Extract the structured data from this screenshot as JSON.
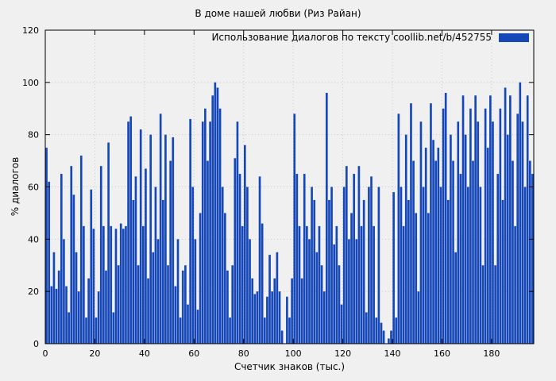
{
  "page": {
    "background": "#f0f0f0"
  },
  "chart_data": {
    "type": "bar",
    "title": "В доме нашей любви (Риз Райан)",
    "xlabel": "Счетчик знаков (тыс.)",
    "ylabel": "% диалогов",
    "legend": "Использование диалогов по тексту  coollib.net/b/452755",
    "bar_color": "#1547b8",
    "axis_color": "#000000",
    "grid_color": "#c9c9c9",
    "xlim": [
      0,
      197
    ],
    "ylim": [
      0,
      120
    ],
    "x_ticks": [
      0,
      20,
      40,
      60,
      80,
      100,
      120,
      140,
      160,
      180
    ],
    "y_ticks": [
      0,
      20,
      40,
      60,
      80,
      100,
      120
    ],
    "grid": true,
    "x_step": 1,
    "values": [
      75,
      62,
      22,
      35,
      21,
      28,
      65,
      40,
      22,
      12,
      68,
      57,
      35,
      20,
      72,
      45,
      10,
      25,
      59,
      44,
      10,
      20,
      68,
      45,
      28,
      77,
      45,
      12,
      44,
      30,
      46,
      44,
      45,
      85,
      87,
      55,
      64,
      30,
      82,
      45,
      67,
      25,
      80,
      35,
      60,
      40,
      88,
      55,
      80,
      30,
      70,
      79,
      22,
      40,
      10,
      28,
      30,
      15,
      86,
      60,
      40,
      13,
      50,
      85,
      90,
      70,
      85,
      95,
      100,
      98,
      90,
      60,
      50,
      28,
      10,
      30,
      71,
      85,
      65,
      45,
      76,
      60,
      40,
      25,
      19,
      20,
      64,
      46,
      10,
      18,
      34,
      20,
      25,
      35,
      20,
      5,
      0,
      18,
      10,
      25,
      88,
      65,
      45,
      25,
      65,
      45,
      40,
      60,
      55,
      35,
      45,
      30,
      20,
      96,
      55,
      60,
      38,
      45,
      30,
      15,
      60,
      68,
      40,
      50,
      65,
      40,
      68,
      45,
      55,
      12,
      60,
      64,
      45,
      10,
      60,
      8,
      5,
      0,
      2,
      5,
      58,
      10,
      88,
      60,
      45,
      80,
      55,
      92,
      70,
      50,
      20,
      85,
      60,
      75,
      50,
      92,
      78,
      70,
      75,
      60,
      90,
      96,
      55,
      80,
      70,
      35,
      85,
      65,
      95,
      80,
      60,
      90,
      70,
      95,
      85,
      60,
      30,
      90,
      75,
      95,
      85,
      30,
      65,
      90,
      55,
      98,
      80,
      95,
      70,
      45,
      88,
      100,
      85,
      60,
      95,
      70,
      65
    ]
  }
}
